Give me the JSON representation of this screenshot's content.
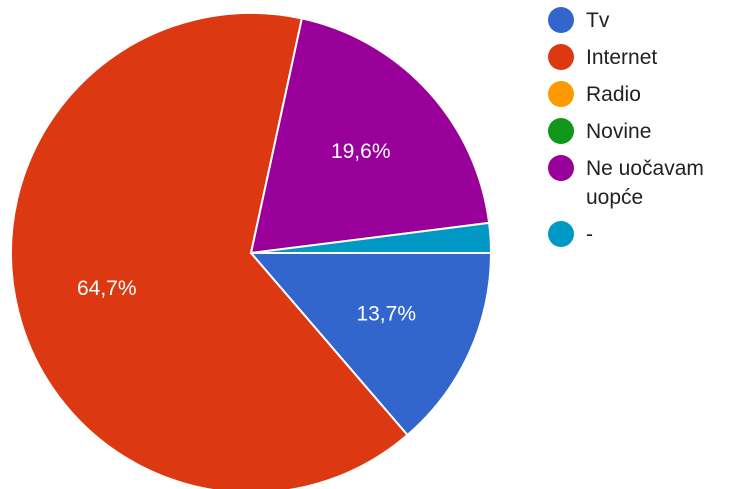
{
  "chart_data": {
    "type": "pie",
    "title": "",
    "slices": [
      {
        "label": "Tv",
        "value": 13.7,
        "display": "13,7%",
        "color": "#3366cc"
      },
      {
        "label": "Internet",
        "value": 64.7,
        "display": "64,7%",
        "color": "#dc3912"
      },
      {
        "label": "Radio",
        "value": 0,
        "display": "",
        "color": "#ff9900"
      },
      {
        "label": "Novine",
        "value": 0,
        "display": "",
        "color": "#109618"
      },
      {
        "label": "Ne uočavam uopće",
        "value": 19.6,
        "display": "19,6%",
        "color": "#990099"
      },
      {
        "label": "-",
        "value": 2.0,
        "display": "",
        "color": "#0099c6"
      }
    ],
    "start_angle_deg": 90,
    "direction": "clockwise",
    "legend_position": "right",
    "slice_border_color": "#ffffff"
  },
  "legend": {
    "items": [
      {
        "label": "Tv",
        "color": "#3366cc"
      },
      {
        "label": "Internet",
        "color": "#dc3912"
      },
      {
        "label": "Radio",
        "color": "#ff9900"
      },
      {
        "label": "Novine",
        "color": "#109618"
      },
      {
        "label": "Ne uočavam uopće",
        "color": "#990099"
      },
      {
        "label": "-",
        "color": "#0099c6"
      }
    ]
  }
}
